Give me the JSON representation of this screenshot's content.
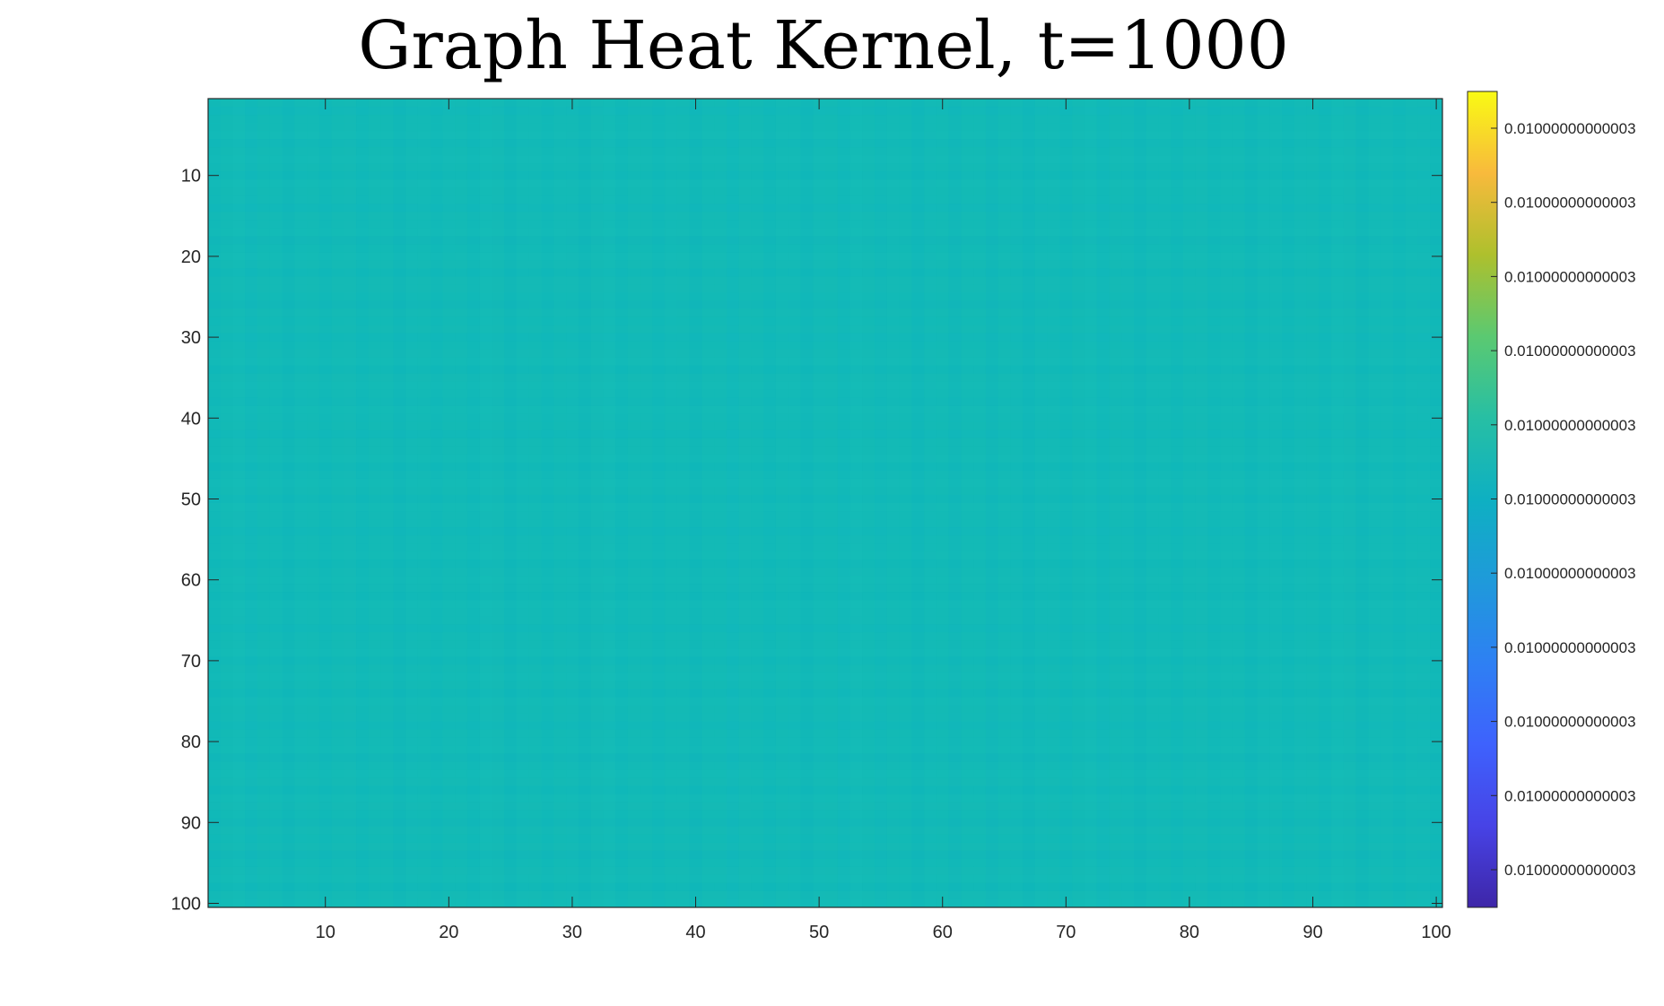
{
  "chart_data": {
    "type": "heatmap",
    "title": "Graph Heat Kernel, t=1000",
    "xlabel": "",
    "ylabel": "",
    "size": [
      100,
      100
    ],
    "xlim": [
      0.5,
      100.5
    ],
    "ylim": [
      0.5,
      100.5
    ],
    "x_ticks": [
      10,
      20,
      30,
      40,
      50,
      60,
      70,
      80,
      90,
      100
    ],
    "y_ticks": [
      10,
      20,
      30,
      40,
      50,
      60,
      70,
      80,
      90,
      100
    ],
    "y_direction": "reverse",
    "colormap": "parula",
    "colorbar": {
      "location": "right",
      "tick_labels": [
        "0.01000000000003",
        "0.01000000000003",
        "0.01000000000003",
        "0.01000000000003",
        "0.01000000000003",
        "0.01000000000003",
        "0.01000000000003",
        "0.01000000000003",
        "0.01000000000003",
        "0.01000000000003",
        "0.01000000000003"
      ],
      "colors": [
        "#3e26a8",
        "#4743e6",
        "#3e62fd",
        "#2e80f3",
        "#1f9ada",
        "#0eb0c2",
        "#27bfa4",
        "#5bc971",
        "#aec02d",
        "#f8ba3c",
        "#f9fa14"
      ]
    },
    "approx_value": 0.01,
    "rendered_color": "#11bab9"
  }
}
